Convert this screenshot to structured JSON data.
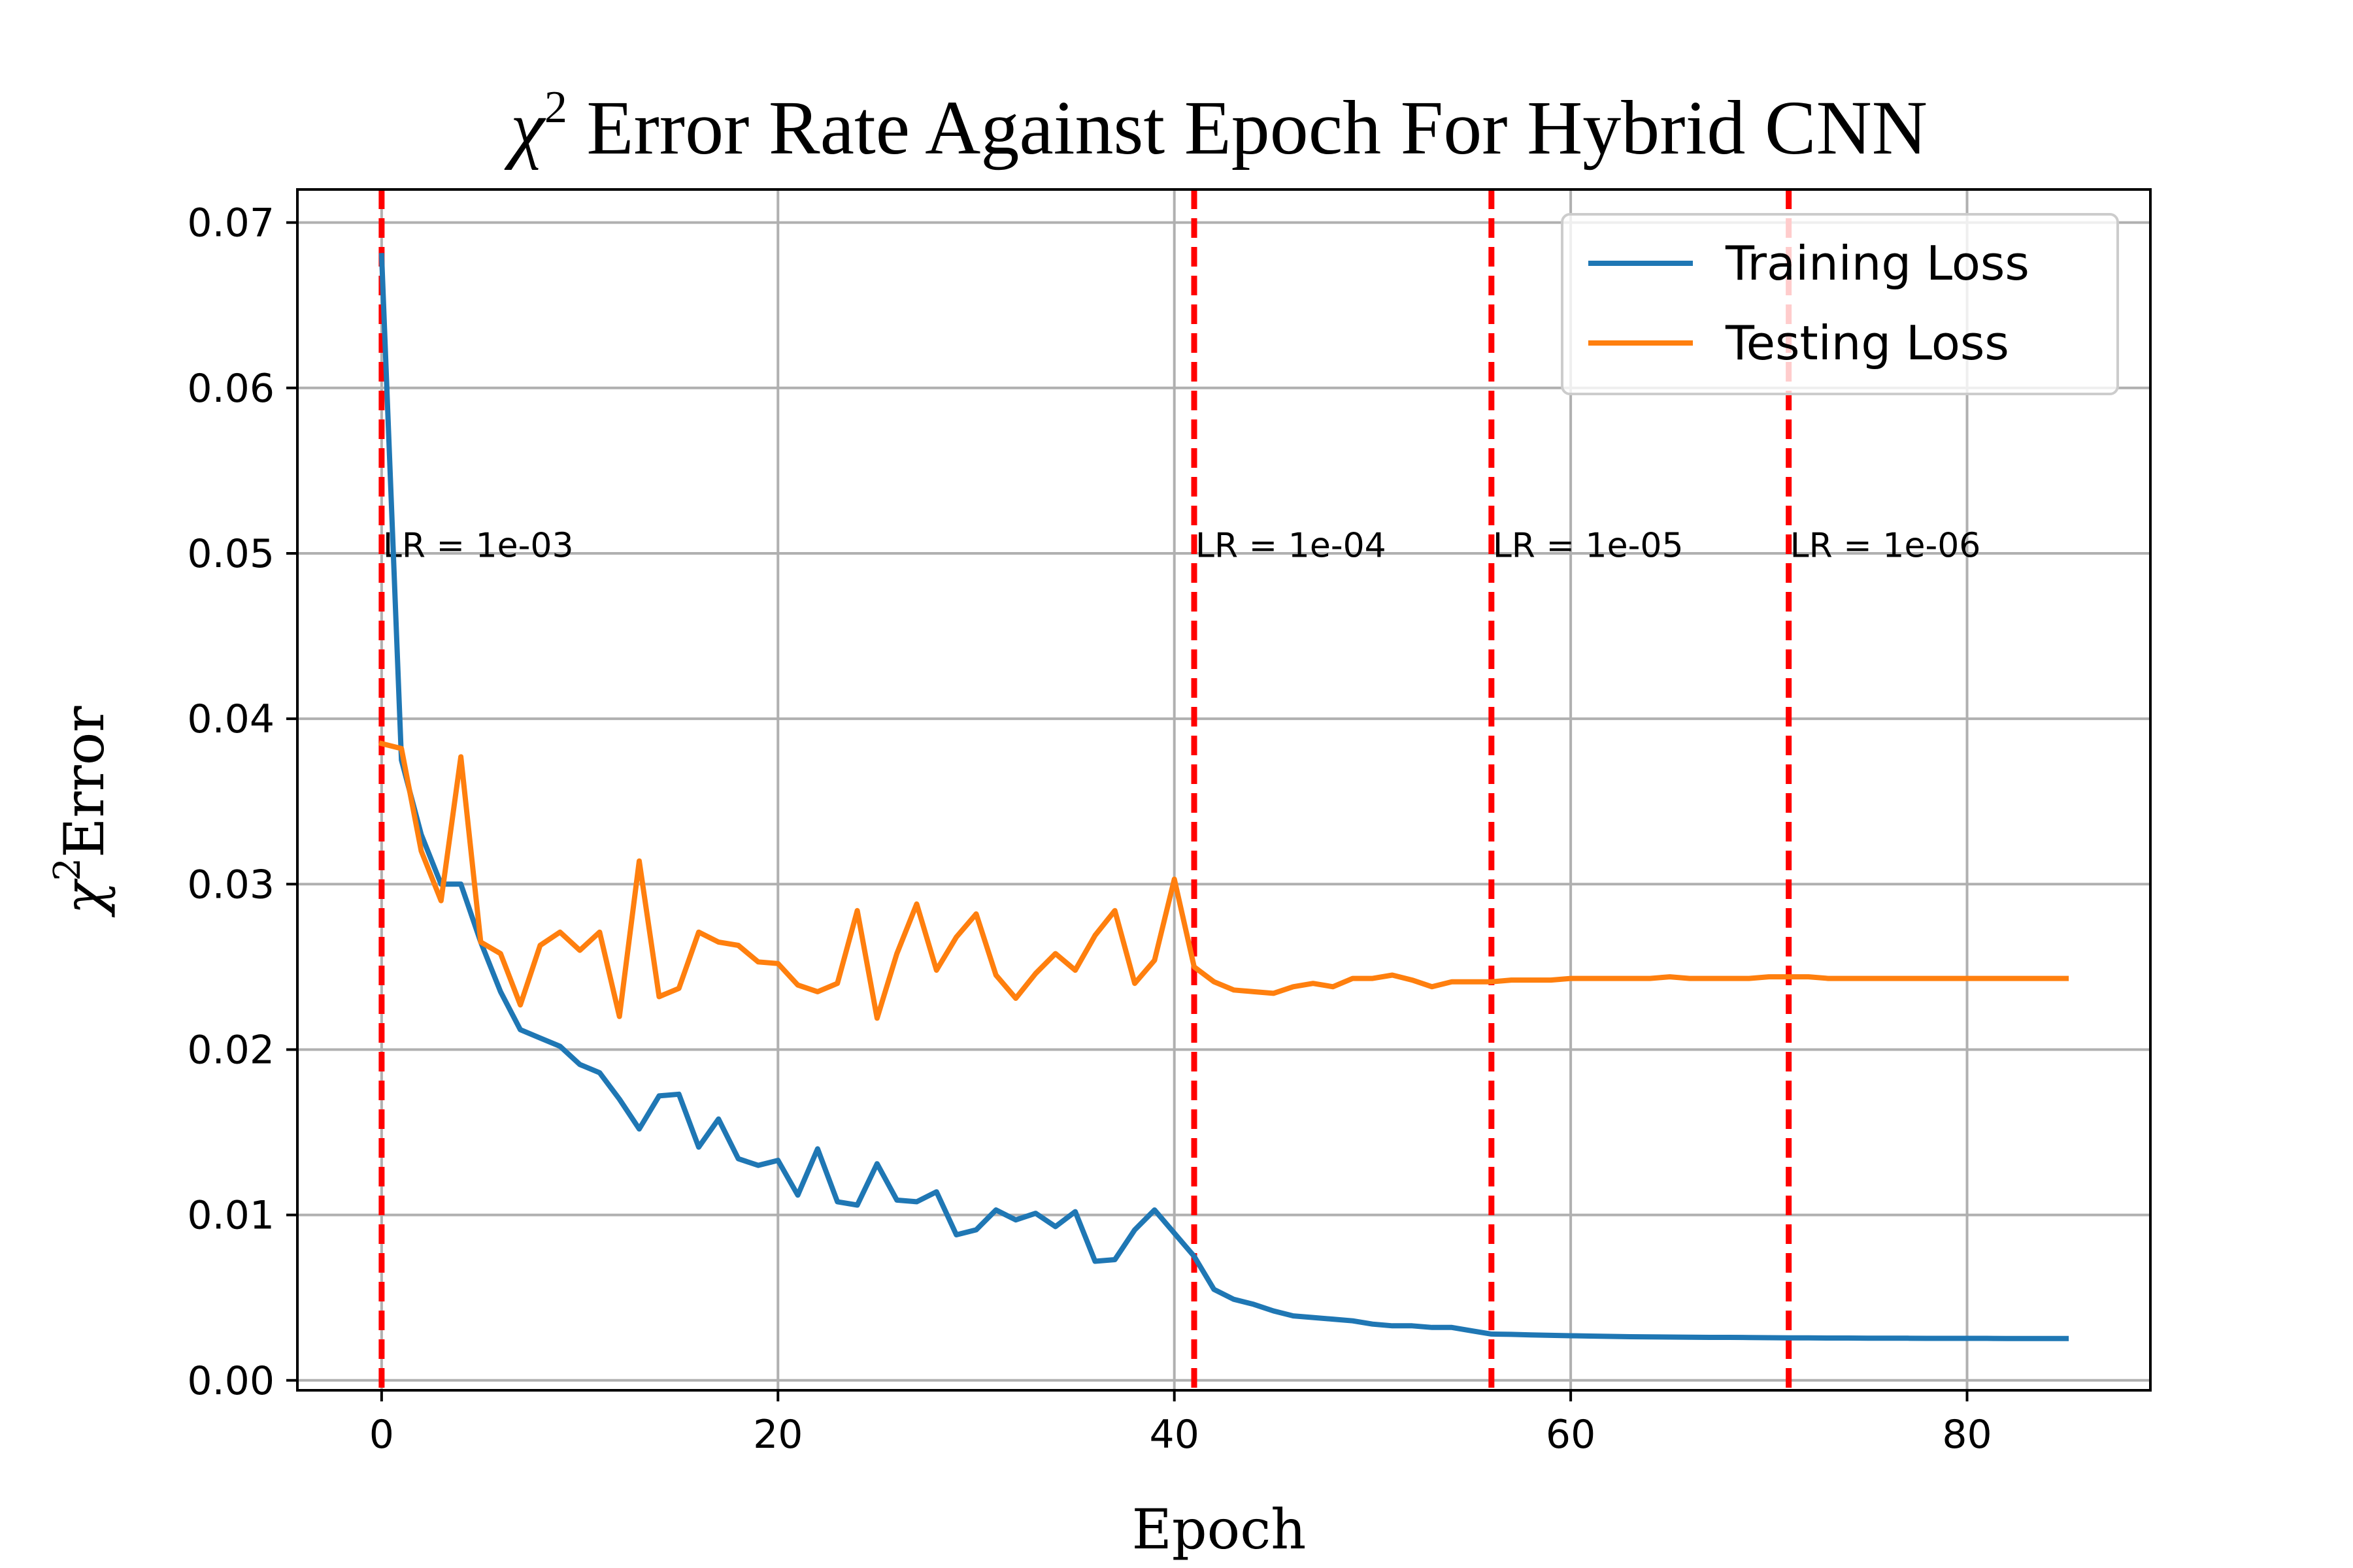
{
  "chart_data": {
    "type": "line",
    "title_main": "χ",
    "title_sup": "2",
    "title_rest": " Error Rate Against Epoch For Hybrid CNN",
    "xlabel": "Epoch",
    "ylabel_main": "χ",
    "ylabel_sup": "2",
    "ylabel_rest": "Error",
    "xlim": [
      -4.25,
      89.25
    ],
    "ylim": [
      -0.0006,
      0.072
    ],
    "x_ticks": [
      0,
      20,
      40,
      60,
      80
    ],
    "x_tick_labels": [
      "0",
      "20",
      "40",
      "60",
      "80"
    ],
    "y_ticks": [
      0.0,
      0.01,
      0.02,
      0.03,
      0.04,
      0.05,
      0.06,
      0.07
    ],
    "y_tick_labels": [
      "0.00",
      "0.01",
      "0.02",
      "0.03",
      "0.04",
      "0.05",
      "0.06",
      "0.07"
    ],
    "grid": true,
    "legend_position": "top-right",
    "x": [
      0,
      1,
      2,
      3,
      4,
      5,
      6,
      7,
      8,
      9,
      10,
      11,
      12,
      13,
      14,
      15,
      16,
      17,
      18,
      19,
      20,
      21,
      22,
      23,
      24,
      25,
      26,
      27,
      28,
      29,
      30,
      31,
      32,
      33,
      34,
      35,
      36,
      37,
      38,
      39,
      40,
      41,
      42,
      43,
      44,
      45,
      46,
      47,
      48,
      49,
      50,
      51,
      52,
      53,
      54,
      55,
      56,
      57,
      58,
      59,
      60,
      61,
      62,
      63,
      64,
      65,
      66,
      67,
      68,
      69,
      70,
      71,
      72,
      73,
      74,
      75,
      76,
      77,
      78,
      79,
      80,
      81,
      82,
      83,
      84,
      85
    ],
    "series": [
      {
        "name": "Training Loss",
        "color": "#1f77b4",
        "values": [
          0.068,
          0.0375,
          0.033,
          0.03,
          0.03,
          0.0265,
          0.0235,
          0.0212,
          0.0207,
          0.0202,
          0.0191,
          0.0186,
          0.017,
          0.0152,
          0.0172,
          0.0173,
          0.0141,
          0.0158,
          0.0134,
          0.013,
          0.0133,
          0.0112,
          0.014,
          0.0108,
          0.0106,
          0.0131,
          0.0109,
          0.0108,
          0.0114,
          0.0088,
          0.0091,
          0.0103,
          0.0097,
          0.0101,
          0.0093,
          0.0102,
          0.0072,
          0.0073,
          0.0091,
          0.0103,
          0.0089,
          0.0075,
          0.0055,
          0.0049,
          0.0046,
          0.0042,
          0.0039,
          0.0038,
          0.0037,
          0.0036,
          0.0034,
          0.0033,
          0.0033,
          0.0032,
          0.0032,
          0.003,
          0.0028,
          0.00278,
          0.00275,
          0.00272,
          0.0027,
          0.00268,
          0.00266,
          0.00264,
          0.00263,
          0.00262,
          0.00261,
          0.0026,
          0.0026,
          0.00259,
          0.00258,
          0.00257,
          0.00257,
          0.00256,
          0.00256,
          0.00255,
          0.00255,
          0.00255,
          0.00254,
          0.00254,
          0.00254,
          0.00254,
          0.00253,
          0.00253,
          0.00253,
          0.00253
        ]
      },
      {
        "name": "Testing Loss",
        "color": "#ff7f0e",
        "values": [
          0.0385,
          0.0382,
          0.032,
          0.029,
          0.0377,
          0.0265,
          0.0258,
          0.0227,
          0.0263,
          0.0271,
          0.026,
          0.0271,
          0.022,
          0.0314,
          0.0232,
          0.0237,
          0.0271,
          0.0265,
          0.0263,
          0.0253,
          0.0252,
          0.0239,
          0.0235,
          0.024,
          0.0284,
          0.0219,
          0.0258,
          0.0288,
          0.0248,
          0.0268,
          0.0282,
          0.0245,
          0.0231,
          0.0246,
          0.0258,
          0.0248,
          0.0269,
          0.0284,
          0.024,
          0.0254,
          0.0303,
          0.025,
          0.0241,
          0.0236,
          0.0235,
          0.0234,
          0.0238,
          0.024,
          0.0238,
          0.0243,
          0.0243,
          0.0245,
          0.0242,
          0.0238,
          0.0241,
          0.0241,
          0.0241,
          0.0242,
          0.0242,
          0.0242,
          0.0243,
          0.0243,
          0.0243,
          0.0243,
          0.0243,
          0.0244,
          0.0243,
          0.0243,
          0.0243,
          0.0243,
          0.0244,
          0.0244,
          0.0244,
          0.0243,
          0.0243,
          0.0243,
          0.0243,
          0.0243,
          0.0243,
          0.0243,
          0.0243,
          0.0243,
          0.0243,
          0.0243,
          0.0243,
          0.0243
        ]
      }
    ],
    "vlines": [
      {
        "x": 0,
        "label": "LR = 1e-03"
      },
      {
        "x": 41,
        "label": "LR = 1e-04"
      },
      {
        "x": 56,
        "label": "LR = 1e-05"
      },
      {
        "x": 71,
        "label": "LR = 1e-06"
      }
    ],
    "vline_color": "#ff0000",
    "vline_label_y": 0.0505
  }
}
